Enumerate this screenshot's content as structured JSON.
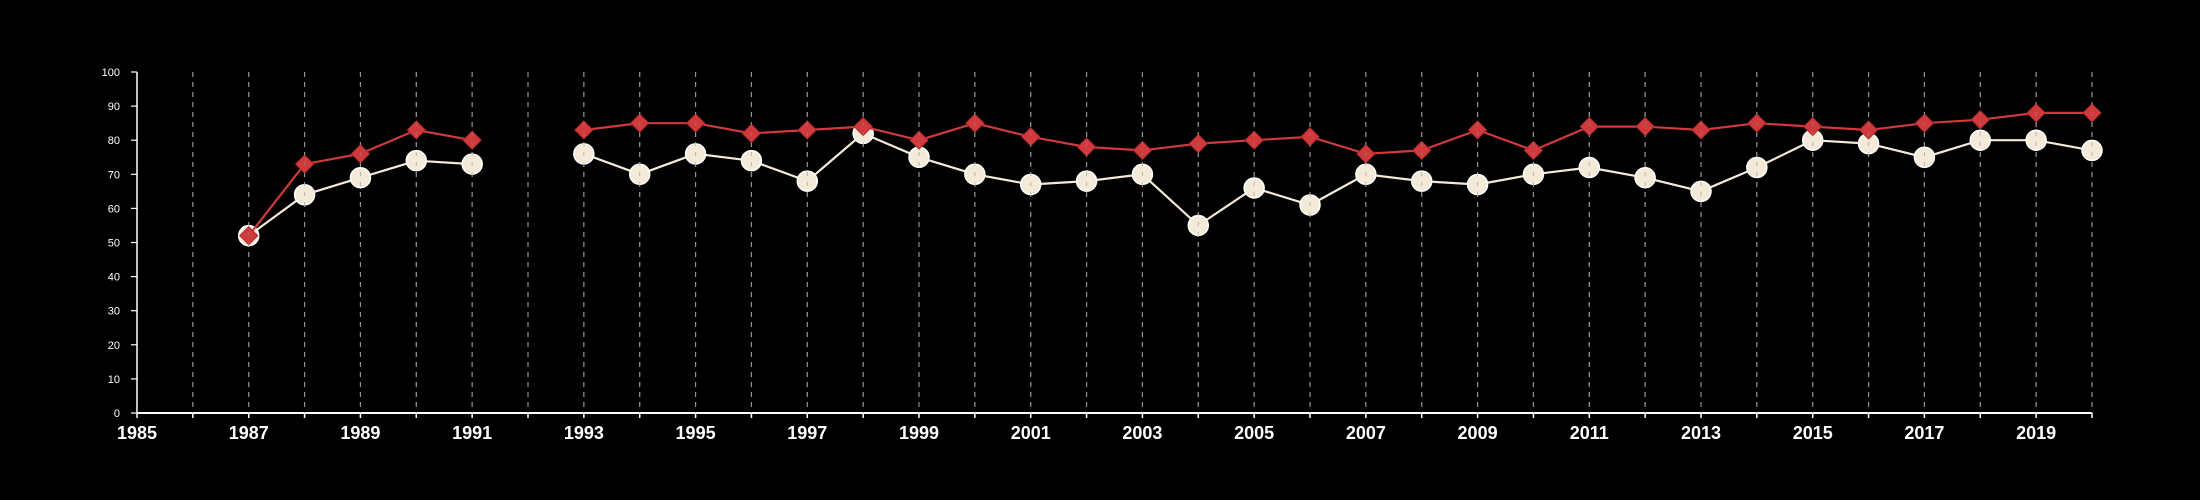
{
  "chart_data": {
    "type": "line",
    "title": "",
    "xlabel": "",
    "ylabel": "",
    "xlim": [
      1985,
      2020
    ],
    "ylim": [
      0,
      100
    ],
    "x_ticks": [
      "1985",
      "1987",
      "1989",
      "1991",
      "1993",
      "1995",
      "1997",
      "1999",
      "2001",
      "2003",
      "2005",
      "2007",
      "2009",
      "2011",
      "2013",
      "2015",
      "2017",
      "2019"
    ],
    "y_ticks": [
      "0",
      "10",
      "20",
      "30",
      "40",
      "50",
      "60",
      "70",
      "80",
      "90",
      "100"
    ],
    "grid": "vertical dashed lines at every year",
    "legend": "none",
    "series": [
      {
        "color": "#d03a3c",
        "marker": "diamond",
        "x": [
          1987,
          1988,
          1989,
          1990,
          1991,
          1993,
          1994,
          1995,
          1996,
          1997,
          1998,
          1999,
          2000,
          2001,
          2002,
          2003,
          2004,
          2005,
          2006,
          2007,
          2008,
          2009,
          2010,
          2011,
          2012,
          2013,
          2014,
          2015,
          2016,
          2017,
          2018,
          2019,
          2020
        ],
        "values": [
          52,
          73,
          76,
          83,
          80,
          83,
          85,
          85,
          82,
          83,
          84,
          80,
          85,
          81,
          78,
          77,
          79,
          80,
          81,
          76,
          77,
          83,
          77,
          84,
          84,
          83,
          85,
          84,
          83,
          85,
          86,
          88,
          88
        ]
      },
      {
        "color": "#f5ead8",
        "marker": "circle",
        "x": [
          1987,
          1988,
          1989,
          1990,
          1991,
          1993,
          1994,
          1995,
          1996,
          1997,
          1998,
          1999,
          2000,
          2001,
          2002,
          2003,
          2004,
          2005,
          2006,
          2007,
          2008,
          2009,
          2010,
          2011,
          2012,
          2013,
          2014,
          2015,
          2016,
          2017,
          2018,
          2019,
          2020
        ],
        "values": [
          52,
          64,
          69,
          74,
          73,
          76,
          70,
          76,
          74,
          68,
          82,
          75,
          70,
          67,
          68,
          70,
          55,
          66,
          61,
          70,
          68,
          67,
          70,
          72,
          69,
          65,
          72,
          80,
          79,
          75,
          80,
          80,
          77
        ]
      }
    ]
  }
}
